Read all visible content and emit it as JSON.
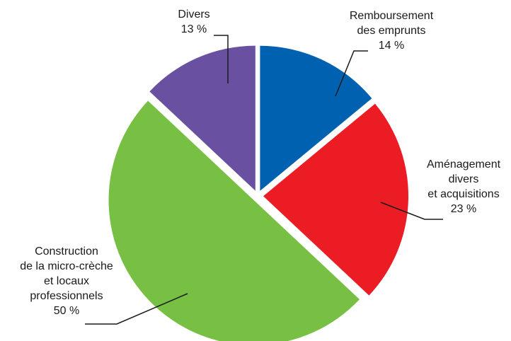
{
  "chart_data": {
    "type": "pie",
    "slices": [
      {
        "label": [
          "Remboursement",
          "des emprunts"
        ],
        "value": 14,
        "value_label": "14 %",
        "color": "#0061B0"
      },
      {
        "label": [
          "Aménagement",
          "divers",
          "et acquisitions"
        ],
        "value": 23,
        "value_label": "23 %",
        "color": "#EC1C24"
      },
      {
        "label": [
          "Construction",
          "de la micro-crèche",
          "et locaux",
          "professionnels"
        ],
        "value": 50,
        "value_label": "50 %",
        "color": "#77C043"
      },
      {
        "label": [
          "Divers"
        ],
        "value": 13,
        "value_label": "13 %",
        "color": "#6A50A0"
      }
    ],
    "start": "top",
    "direction": "clockwise",
    "exploded": true,
    "legend": "none"
  }
}
